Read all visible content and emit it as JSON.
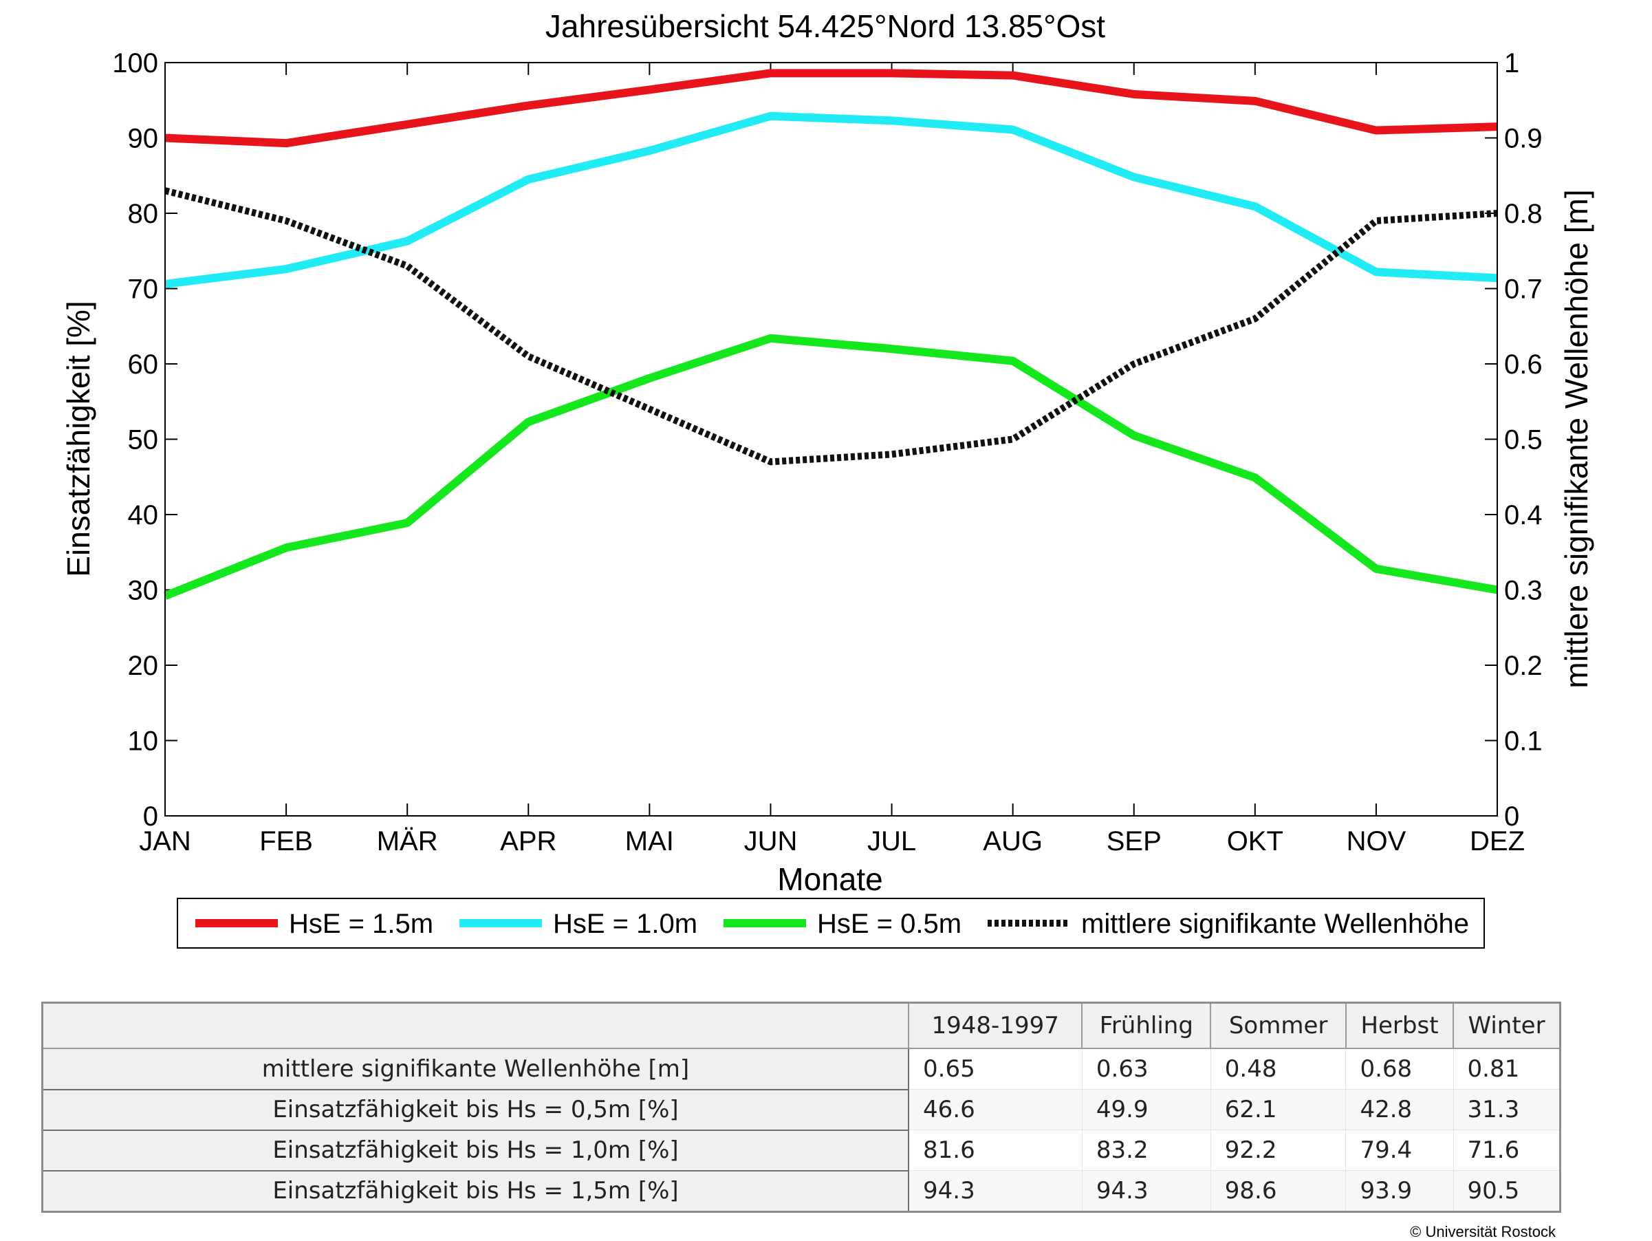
{
  "chart_data": {
    "type": "line",
    "title": "Jahresübersicht  54.425°Nord  13.85°Ost",
    "xlabel": "Monate",
    "ylabel": "Einsatzfähigkeit [%]",
    "y2label": "mittlere signifikante Wellenhöhe [m]",
    "categories": [
      "JAN",
      "FEB",
      "MÄR",
      "APR",
      "MAI",
      "JUN",
      "JUL",
      "AUG",
      "SEP",
      "OKT",
      "NOV",
      "DEZ"
    ],
    "ylim": [
      0,
      100
    ],
    "y2lim": [
      0,
      1
    ],
    "yticks": [
      "0",
      "10",
      "20",
      "30",
      "40",
      "50",
      "60",
      "70",
      "80",
      "90",
      "100"
    ],
    "y2ticks": [
      "0",
      "0.1",
      "0.2",
      "0.3",
      "0.4",
      "0.5",
      "0.6",
      "0.7",
      "0.8",
      "0.9",
      "1"
    ],
    "grid": false,
    "legend": "bottom",
    "series": [
      {
        "name": "HsE = 1.5m",
        "axis": "left",
        "color": "#e8141c",
        "style": "solid",
        "values": [
          90.0,
          89.3,
          91.8,
          94.3,
          96.4,
          98.6,
          98.6,
          98.3,
          95.8,
          94.9,
          91.0,
          91.5
        ]
      },
      {
        "name": "HsE = 1.0m",
        "axis": "left",
        "color": "#21ecf5",
        "style": "solid",
        "values": [
          70.6,
          72.6,
          76.3,
          84.5,
          88.3,
          92.9,
          92.3,
          91.1,
          84.8,
          80.9,
          72.2,
          71.4
        ]
      },
      {
        "name": "HsE = 0.5m",
        "axis": "left",
        "color": "#14e81c",
        "style": "solid",
        "values": [
          29.2,
          35.6,
          38.9,
          52.3,
          58.1,
          63.4,
          62.0,
          60.4,
          50.5,
          44.9,
          32.8,
          30.0
        ]
      },
      {
        "name": "mittlere signifikante Wellenhöhe",
        "axis": "right",
        "color": "#111111",
        "style": "dotted",
        "values": [
          0.83,
          0.79,
          0.73,
          0.61,
          0.54,
          0.47,
          0.48,
          0.5,
          0.6,
          0.66,
          0.79,
          0.8
        ]
      }
    ]
  },
  "table": {
    "headers": [
      "",
      "1948-1997",
      "Frühling",
      "Sommer",
      "Herbst",
      "Winter"
    ],
    "rows": [
      {
        "label": "mittlere signifikante Wellenhöhe [m]",
        "values": [
          "0.65",
          "0.63",
          "0.48",
          "0.68",
          "0.81"
        ]
      },
      {
        "label": "Einsatzfähigkeit bis Hs = 0,5m [%]",
        "values": [
          "46.6",
          "49.9",
          "62.1",
          "42.8",
          "31.3"
        ]
      },
      {
        "label": "Einsatzfähigkeit bis Hs = 1,0m [%]",
        "values": [
          "81.6",
          "83.2",
          "92.2",
          "79.4",
          "71.6"
        ]
      },
      {
        "label": "Einsatzfähigkeit bis Hs = 1,5m [%]",
        "values": [
          "94.3",
          "94.3",
          "98.6",
          "93.9",
          "90.5"
        ]
      }
    ]
  },
  "footer": {
    "copyright": "© Universität Rostock"
  }
}
